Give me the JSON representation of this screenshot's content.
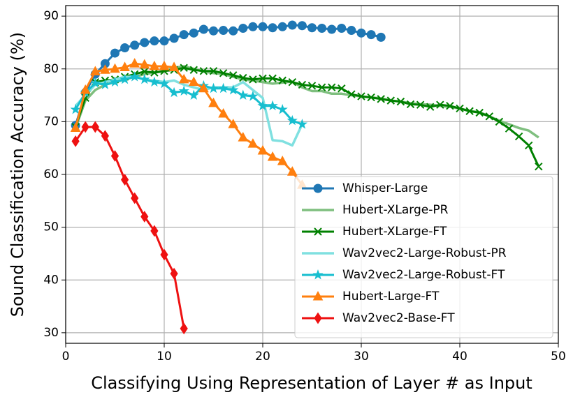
{
  "chart_data": {
    "type": "line",
    "xlabel": "Classifying Using Representation of Layer # as Input",
    "ylabel": "Sound Classification Accuracy (%)",
    "xlim": [
      0,
      50
    ],
    "ylim": [
      28,
      92
    ],
    "xticks": [
      0,
      10,
      20,
      30,
      40,
      50
    ],
    "yticks": [
      30,
      40,
      50,
      60,
      70,
      80,
      90
    ],
    "grid": true,
    "legend": "lower right",
    "series": [
      {
        "name": "Whisper-Large",
        "color": "#1f77b4",
        "marker": "circle",
        "x": [
          1,
          2,
          3,
          4,
          5,
          6,
          7,
          8,
          9,
          10,
          11,
          12,
          13,
          14,
          15,
          16,
          17,
          18,
          19,
          20,
          21,
          22,
          23,
          24,
          25,
          26,
          27,
          28,
          29,
          30,
          31,
          32
        ],
        "values": [
          69.3,
          75.5,
          79,
          81,
          83,
          84,
          84.5,
          85,
          85.3,
          85.3,
          85.8,
          86.5,
          86.8,
          87.5,
          87.2,
          87.3,
          87.2,
          87.7,
          88,
          88,
          87.8,
          88,
          88.3,
          88.2,
          87.8,
          87.7,
          87.5,
          87.7,
          87.3,
          86.8,
          86.5,
          86
        ]
      },
      {
        "name": "Hubert-XLarge-PR",
        "color": "#7fbf7f",
        "marker": "none",
        "x": [
          1,
          2,
          3,
          4,
          5,
          6,
          7,
          8,
          9,
          10,
          11,
          12,
          13,
          14,
          15,
          16,
          17,
          18,
          19,
          20,
          21,
          22,
          23,
          24,
          25,
          26,
          27,
          28,
          29,
          30,
          31,
          32,
          33,
          34,
          35,
          36,
          37,
          38,
          39,
          40,
          41,
          42,
          43,
          44,
          45,
          46,
          47,
          48
        ],
        "values": [
          68.8,
          74,
          76,
          77,
          77.5,
          78,
          78.5,
          79,
          79.3,
          79.6,
          80.2,
          80.5,
          80,
          79.5,
          79.2,
          79,
          78.5,
          78,
          77.8,
          77.5,
          77.2,
          77.4,
          77.6,
          76.5,
          75.8,
          75.8,
          75.3,
          75.3,
          75,
          74.8,
          74.6,
          74.4,
          74,
          73.8,
          73.5,
          73.3,
          73.2,
          73,
          72.8,
          72.5,
          72,
          71.8,
          71,
          70.2,
          69.5,
          68.8,
          68.3,
          67
        ]
      },
      {
        "name": "Hubert-XLarge-FT",
        "color": "#008000",
        "marker": "x",
        "x": [
          1,
          2,
          3,
          4,
          5,
          6,
          7,
          8,
          9,
          10,
          11,
          12,
          13,
          14,
          15,
          16,
          17,
          18,
          19,
          20,
          21,
          22,
          23,
          24,
          25,
          26,
          27,
          28,
          29,
          30,
          31,
          32,
          33,
          34,
          35,
          36,
          37,
          38,
          39,
          40,
          41,
          42,
          43,
          44,
          45,
          46,
          47,
          48
        ],
        "values": [
          69,
          74.5,
          77.5,
          77.8,
          78,
          78.5,
          79,
          79.5,
          79.3,
          79.6,
          79.8,
          80.2,
          79.8,
          79.6,
          79.6,
          79.2,
          78.8,
          78.3,
          78,
          78.2,
          78.2,
          77.8,
          77.5,
          77,
          76.8,
          76.5,
          76.5,
          76.3,
          75.2,
          74.8,
          74.6,
          74.3,
          74,
          73.8,
          73.3,
          73.2,
          72.8,
          73.2,
          73,
          72.5,
          72,
          71.7,
          71,
          70,
          68.7,
          67.2,
          65.5,
          61.5
        ]
      },
      {
        "name": "Wav2vec2-Large-Robust-PR",
        "color": "#80e0e0",
        "marker": "none",
        "x": [
          1,
          2,
          3,
          4,
          5,
          6,
          7,
          8,
          9,
          10,
          11,
          12,
          13,
          14,
          15,
          16,
          17,
          18,
          19,
          20,
          21,
          22,
          23,
          24
        ],
        "values": [
          73,
          75,
          77,
          77.5,
          78,
          78.5,
          78.5,
          78,
          77.8,
          77.5,
          77.8,
          77,
          76.5,
          76,
          76.5,
          76.5,
          76.5,
          77.5,
          76,
          74.5,
          66.5,
          66.3,
          65.5,
          69.5
        ]
      },
      {
        "name": "Wav2vec2-Large-Robust-FT",
        "color": "#17becf",
        "marker": "star",
        "x": [
          1,
          2,
          3,
          4,
          5,
          6,
          7,
          8,
          9,
          10,
          11,
          12,
          13,
          14,
          15,
          16,
          17,
          18,
          19,
          20,
          21,
          22,
          23,
          24
        ],
        "values": [
          72.3,
          75.5,
          77.3,
          77,
          77.5,
          78,
          78.5,
          78,
          77.5,
          77.2,
          75.5,
          75.8,
          75,
          76.8,
          76.3,
          76.3,
          76,
          75,
          74.8,
          73,
          73,
          72.3,
          70.2,
          69.5
        ]
      },
      {
        "name": "Hubert-Large-FT",
        "color": "#ff7f0e",
        "marker": "triangle",
        "x": [
          1,
          2,
          3,
          4,
          5,
          6,
          7,
          8,
          9,
          10,
          11,
          12,
          13,
          14,
          15,
          16,
          17,
          18,
          19,
          20,
          21,
          22,
          23,
          24
        ],
        "values": [
          68.8,
          76,
          79.5,
          79.8,
          80,
          80.3,
          81,
          80.8,
          80.5,
          80.5,
          80.3,
          78,
          77.5,
          76.3,
          73.5,
          71.5,
          69.5,
          67,
          65.8,
          64.5,
          63.3,
          62.5,
          60.5,
          58
        ]
      },
      {
        "name": "Wav2vec2-Base-FT",
        "color": "#ee1111",
        "marker": "diamond",
        "x": [
          1,
          2,
          3,
          4,
          5,
          6,
          7,
          8,
          9,
          10,
          11,
          12
        ],
        "values": [
          66.3,
          69,
          69,
          67.3,
          63.5,
          59,
          55.5,
          52,
          49.3,
          44.8,
          41.2,
          30.8
        ]
      }
    ]
  }
}
